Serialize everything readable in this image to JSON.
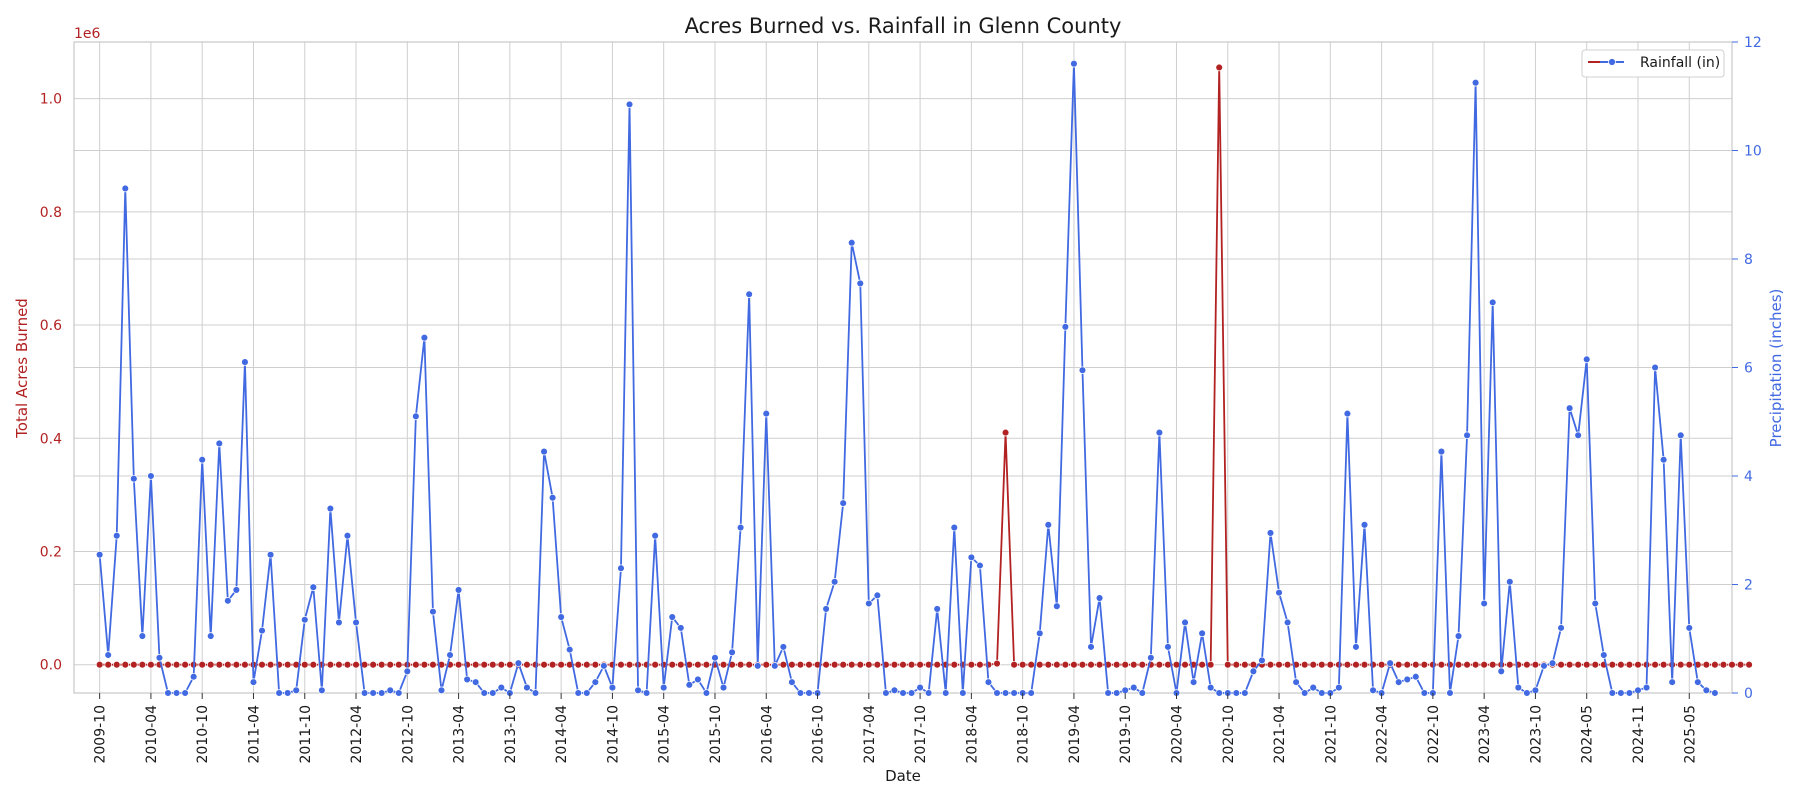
{
  "chart_data": {
    "type": "line",
    "title": "Acres Burned vs. Rainfall in Glenn County",
    "xlabel": "Date",
    "y_left_label": "Total Acres Burned",
    "y_right_label": "Precipitation (inches)",
    "y_left_offset_text": "1e6",
    "y_left_lim": [
      -50000,
      1100000
    ],
    "y_left_ticks": [
      0,
      200000,
      400000,
      600000,
      800000,
      1000000
    ],
    "y_left_tick_labels": [
      "0.0",
      "0.2",
      "0.4",
      "0.6",
      "0.8",
      "1.0"
    ],
    "y_right_lim": [
      0,
      12
    ],
    "y_right_ticks": [
      0,
      2,
      4,
      6,
      8,
      10,
      12
    ],
    "y_right_tick_labels": [
      "0",
      "2",
      "4",
      "6",
      "8",
      "10",
      "12"
    ],
    "x_ticks": [
      {
        "date": "2009-10",
        "index": 0
      },
      {
        "date": "2010-04",
        "index": 6
      },
      {
        "date": "2010-10",
        "index": 12
      },
      {
        "date": "2011-04",
        "index": 18
      },
      {
        "date": "2011-10",
        "index": 24
      },
      {
        "date": "2012-04",
        "index": 30
      },
      {
        "date": "2012-10",
        "index": 36
      },
      {
        "date": "2013-04",
        "index": 42
      },
      {
        "date": "2013-10",
        "index": 48
      },
      {
        "date": "2014-04",
        "index": 54
      },
      {
        "date": "2014-10",
        "index": 60
      },
      {
        "date": "2015-04",
        "index": 66
      },
      {
        "date": "2015-10",
        "index": 72
      },
      {
        "date": "2016-04",
        "index": 78
      },
      {
        "date": "2016-10",
        "index": 84
      },
      {
        "date": "2017-04",
        "index": 90
      },
      {
        "date": "2017-10",
        "index": 96
      },
      {
        "date": "2018-04",
        "index": 102
      },
      {
        "date": "2018-10",
        "index": 108
      },
      {
        "date": "2019-04",
        "index": 114
      },
      {
        "date": "2019-10",
        "index": 120
      },
      {
        "date": "2020-04",
        "index": 126
      },
      {
        "date": "2020-10",
        "index": 132
      },
      {
        "date": "2021-04",
        "index": 138
      },
      {
        "date": "2021-10",
        "index": 144
      },
      {
        "date": "2022-04",
        "index": 150
      },
      {
        "date": "2022-10",
        "index": 156
      },
      {
        "date": "2023-04",
        "index": 162
      },
      {
        "date": "2023-10",
        "index": 168
      },
      {
        "date": "2024-05",
        "index": 174
      },
      {
        "date": "2024-11",
        "index": 180
      },
      {
        "date": "2025-05",
        "index": 186
      }
    ],
    "x_range": [
      -3,
      191
    ],
    "colors": {
      "acres": "#b22222",
      "rain": "#4169e1",
      "grid": "#cfcfcf"
    },
    "series": [
      {
        "name": "Acres Burned",
        "color": "#b22222",
        "axis": "left",
        "values": [
          0,
          0,
          0,
          0,
          0,
          0,
          0,
          0,
          0,
          0,
          0,
          0,
          0,
          0,
          0,
          0,
          0,
          0,
          0,
          0,
          0,
          0,
          0,
          0,
          0,
          0,
          0,
          0,
          0,
          0,
          0,
          0,
          0,
          0,
          0,
          0,
          0,
          0,
          0,
          0,
          0,
          0,
          0,
          0,
          0,
          0,
          0,
          0,
          0,
          0,
          0,
          0,
          0,
          0,
          0,
          0,
          0,
          0,
          0,
          0,
          0,
          0,
          0,
          0,
          0,
          0,
          0,
          0,
          0,
          0,
          0,
          0,
          0,
          0,
          0,
          0,
          0,
          0,
          0,
          0,
          0,
          0,
          0,
          0,
          0,
          0,
          0,
          0,
          0,
          0,
          0,
          0,
          0,
          0,
          0,
          0,
          0,
          0,
          0,
          0,
          0,
          0,
          0,
          0,
          0,
          2000,
          410000,
          0,
          0,
          0,
          0,
          0,
          0,
          0,
          0,
          0,
          0,
          0,
          0,
          0,
          0,
          0,
          0,
          0,
          0,
          0,
          0,
          0,
          0,
          0,
          0,
          1055000,
          0,
          0,
          0,
          0,
          0,
          0,
          0,
          0,
          0,
          0,
          0,
          0,
          0,
          0,
          0,
          0,
          0,
          0,
          0,
          0,
          0,
          0,
          0,
          0,
          0,
          0,
          0,
          0,
          0,
          0,
          0,
          0,
          0,
          0,
          0,
          0,
          0,
          0,
          0,
          0,
          0,
          0,
          0,
          0,
          0,
          0,
          0,
          0,
          0,
          0,
          0,
          0,
          0,
          0,
          0,
          0,
          0,
          0,
          0,
          0,
          0,
          0
        ]
      },
      {
        "name": "Rainfall (in)",
        "color": "#4169e1",
        "axis": "right",
        "values": [
          2.55,
          0.7,
          2.9,
          9.3,
          3.95,
          1.05,
          4.0,
          0.65,
          0.0,
          0.0,
          0.0,
          0.3,
          4.3,
          1.05,
          4.6,
          1.7,
          1.9,
          6.1,
          0.2,
          1.15,
          2.55,
          0.0,
          0.0,
          0.05,
          1.35,
          1.95,
          0.05,
          3.4,
          1.3,
          2.9,
          1.3,
          0.0,
          0.0,
          0.0,
          0.05,
          0.0,
          0.4,
          5.1,
          6.55,
          1.5,
          0.05,
          0.7,
          1.9,
          0.25,
          0.2,
          0.0,
          0.0,
          0.1,
          0.0,
          0.55,
          0.1,
          0.0,
          4.45,
          3.6,
          1.4,
          0.8,
          0.0,
          0.0,
          0.2,
          0.5,
          0.1,
          2.3,
          10.85,
          0.05,
          0.0,
          2.9,
          0.1,
          1.4,
          1.2,
          0.15,
          0.25,
          0.0,
          0.65,
          0.1,
          0.75,
          3.05,
          7.35,
          0.5,
          5.15,
          0.5,
          0.85,
          0.2,
          0.0,
          0.0,
          0.0,
          1.55,
          2.05,
          3.5,
          8.3,
          7.55,
          1.65,
          1.8,
          0.0,
          0.05,
          0.0,
          0.0,
          0.1,
          0.0,
          1.55,
          0.0,
          3.05,
          0.0,
          2.5,
          2.35,
          0.2,
          0.0,
          0.0,
          0.0,
          0.0,
          0.0,
          1.1,
          3.1,
          1.6,
          6.75,
          11.6,
          5.95,
          0.85,
          1.75,
          0.0,
          0.0,
          0.05,
          0.1,
          0.0,
          0.65,
          4.8,
          0.85,
          0.0,
          1.3,
          0.2,
          1.1,
          0.1,
          0.0,
          0.0,
          0.0,
          0.0,
          0.4,
          0.6,
          2.95,
          1.85,
          1.3,
          0.2,
          0.0,
          0.1,
          0.0,
          0.0,
          0.1,
          5.15,
          0.85,
          3.1,
          0.05,
          0.0,
          0.55,
          0.2,
          0.25,
          0.3,
          0.0,
          0.0,
          4.45,
          0.0,
          1.05,
          4.75,
          11.25,
          1.65,
          7.2,
          0.4,
          2.05,
          0.1,
          0.0,
          0.05,
          0.5,
          0.55,
          1.2,
          5.25,
          4.75,
          6.15,
          1.65,
          0.7,
          0.0,
          0.0,
          0.0,
          0.05,
          0.1,
          6.0,
          4.3,
          0.2,
          4.75,
          1.2,
          0.2,
          0.05,
          0.0
        ]
      }
    ],
    "legend": {
      "position": "top-right"
    },
    "grid": true
  }
}
